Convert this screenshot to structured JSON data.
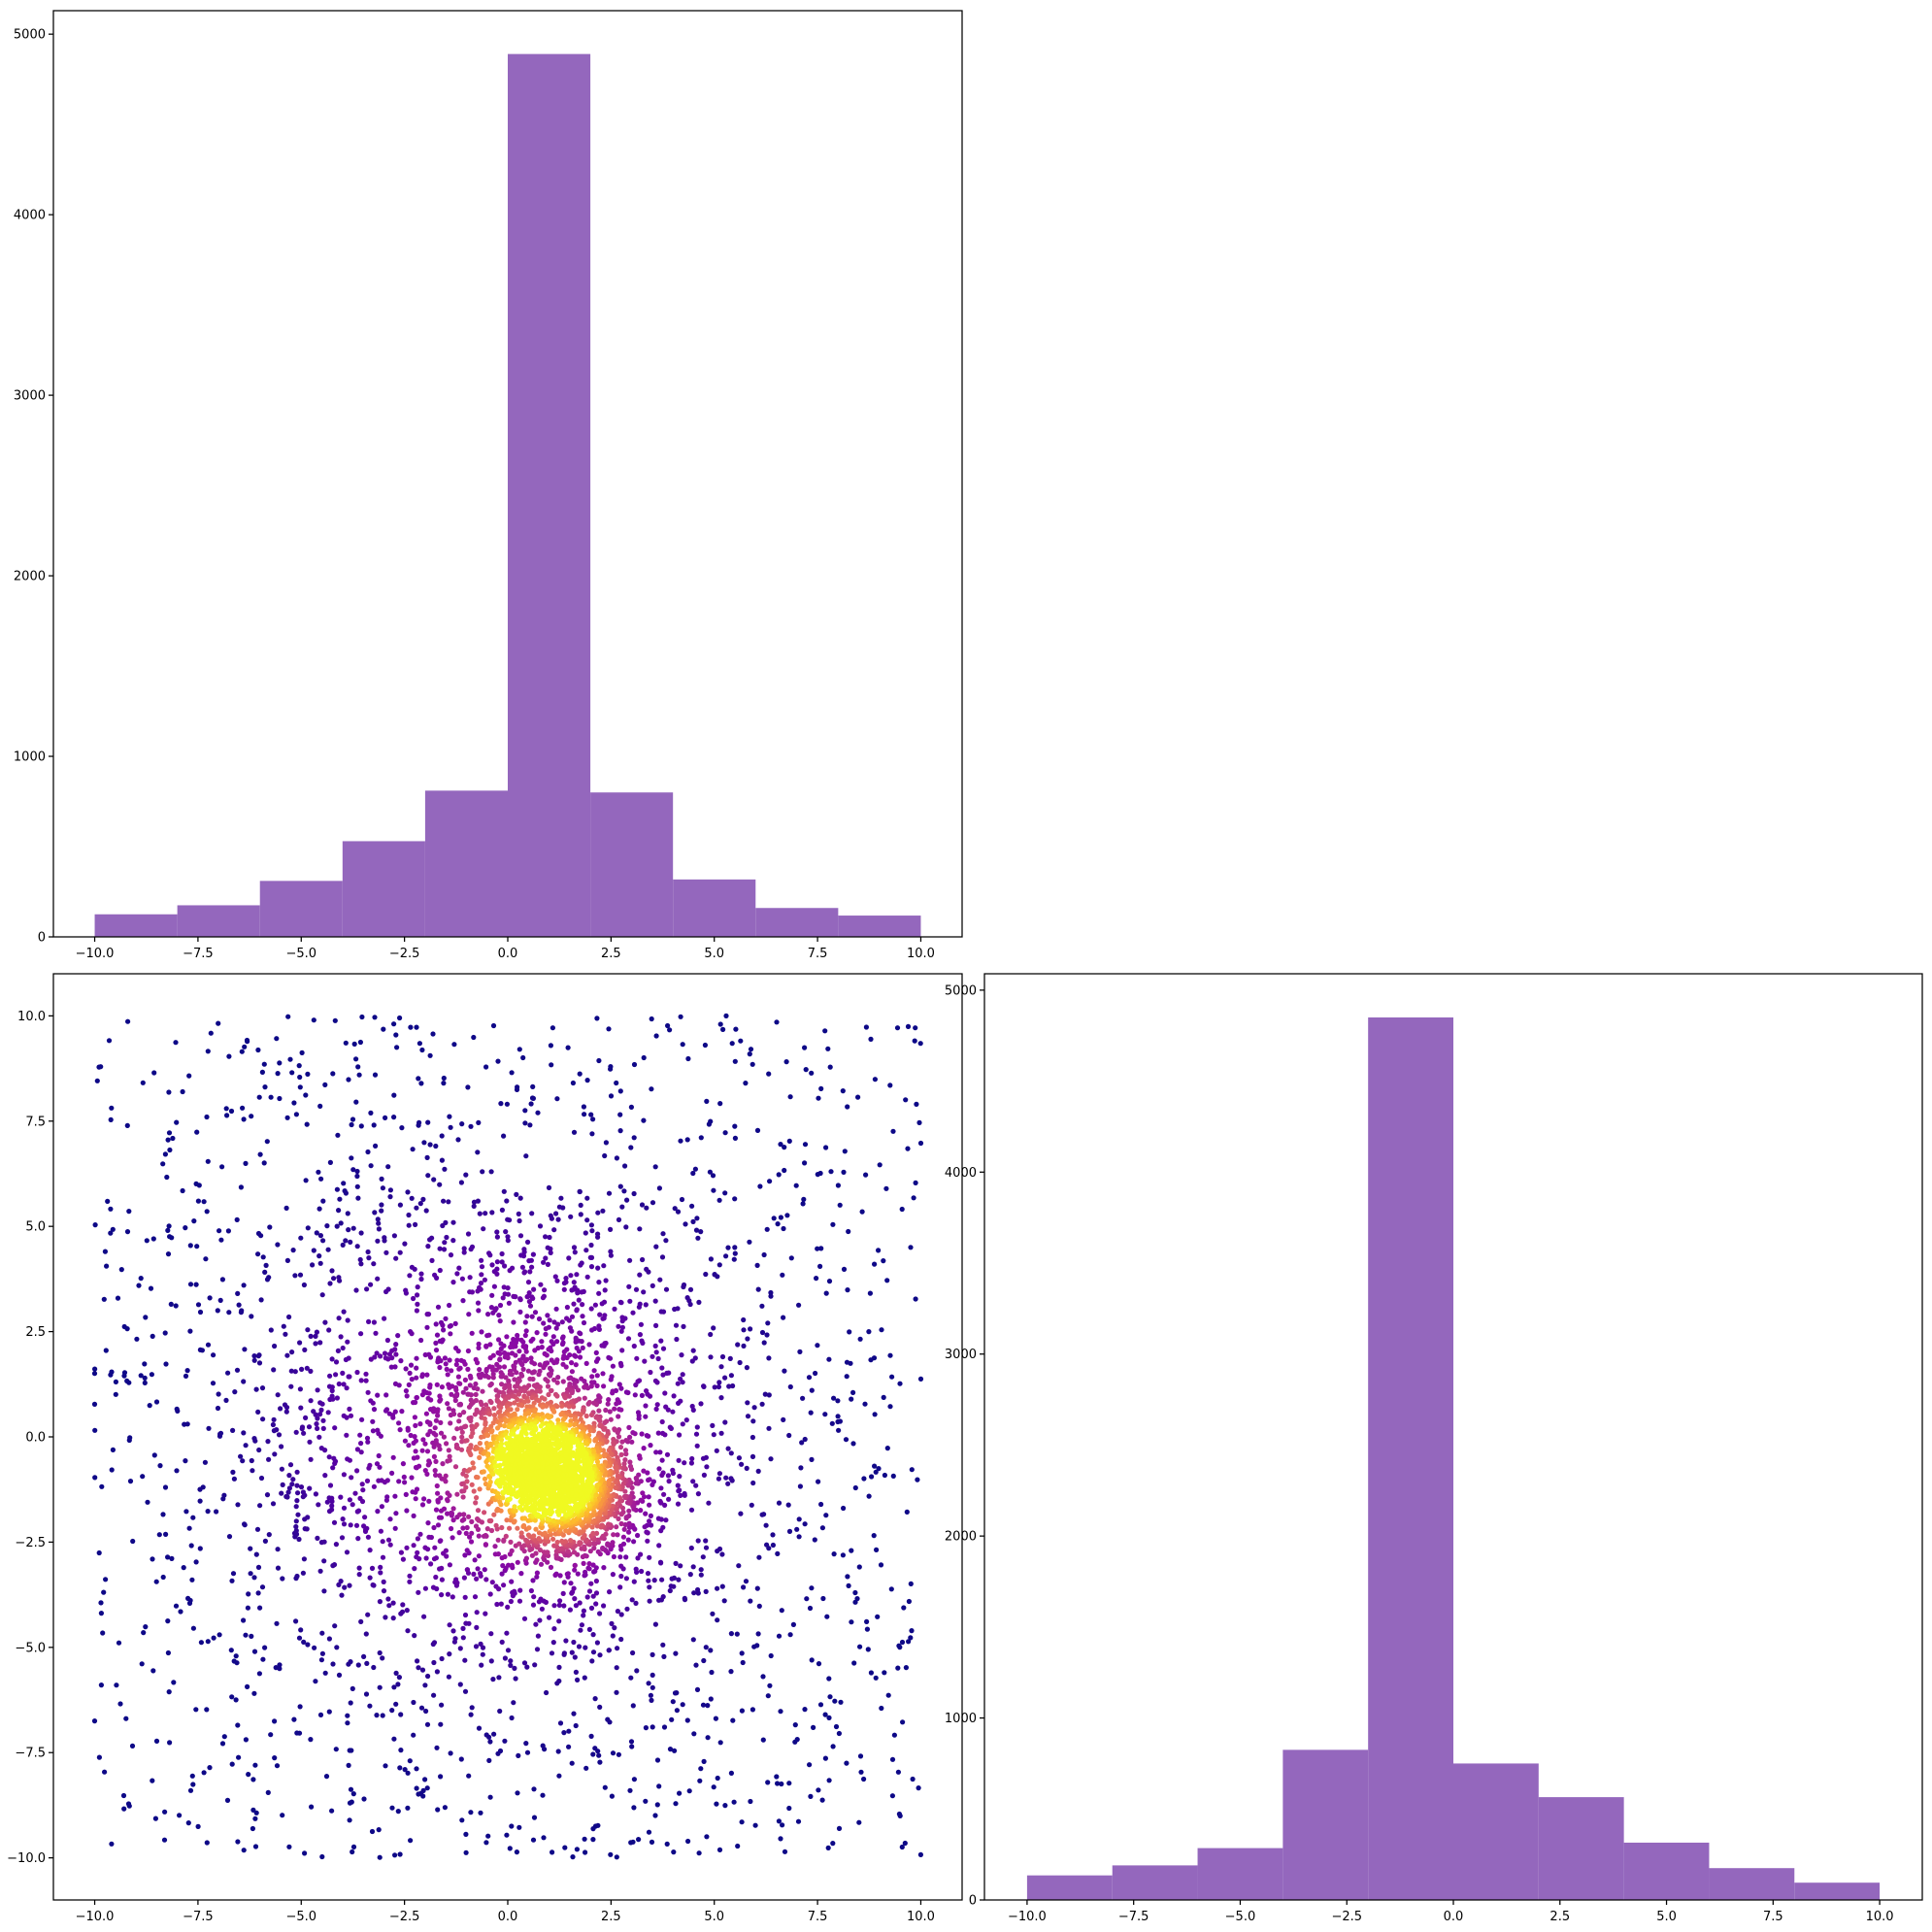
{
  "chart_data": [
    {
      "id": "top_histogram",
      "type": "bar",
      "description_free": true,
      "bin_edges": [
        -10,
        -8,
        -6,
        -4,
        -2,
        0,
        2,
        4,
        6,
        8,
        10
      ],
      "values": [
        125,
        175,
        310,
        530,
        810,
        4890,
        800,
        318,
        160,
        118
      ],
      "color": "#9467bd",
      "xlim": [
        -11,
        11
      ],
      "ylim": [
        0,
        5130
      ],
      "xticks": [
        -10.0,
        -7.5,
        -5.0,
        -2.5,
        0.0,
        2.5,
        5.0,
        7.5,
        10.0
      ],
      "xtick_labels": [
        "−10.0",
        "−7.5",
        "−5.0",
        "−2.5",
        "0.0",
        "2.5",
        "5.0",
        "7.5",
        "10.0"
      ],
      "yticks": [
        0,
        1000,
        2000,
        3000,
        4000,
        5000
      ],
      "ytick_labels": [
        "0",
        "1000",
        "2000",
        "3000",
        "4000",
        "5000"
      ],
      "title": "",
      "xlabel": "",
      "ylabel": ""
    },
    {
      "id": "scatter_density",
      "type": "scatter",
      "colormap": "plasma",
      "color_encodes": "point density",
      "x_range": [
        -10,
        10
      ],
      "y_range": [
        -10,
        10
      ],
      "dense_center": [
        0.6,
        -0.7
      ],
      "secondary_cluster_center": [
        1.6,
        -1.2
      ],
      "xlim": [
        -11,
        11
      ],
      "ylim": [
        -11,
        11
      ],
      "xticks": [
        -10.0,
        -7.5,
        -5.0,
        -2.5,
        0.0,
        2.5,
        5.0,
        7.5,
        10.0
      ],
      "xtick_labels": [
        "−10.0",
        "−7.5",
        "−5.0",
        "−2.5",
        "0.0",
        "2.5",
        "5.0",
        "7.5",
        "10.0"
      ],
      "yticks": [
        -10.0,
        -7.5,
        -5.0,
        -2.5,
        0.0,
        2.5,
        5.0,
        7.5,
        10.0
      ],
      "ytick_labels": [
        "−10.0",
        "−7.5",
        "−5.0",
        "−2.5",
        "0.0",
        "2.5",
        "5.0",
        "7.5",
        "10.0"
      ],
      "title": "",
      "xlabel": "",
      "ylabel": ""
    },
    {
      "id": "right_histogram",
      "type": "bar",
      "bin_edges": [
        -10,
        -8,
        -6,
        -4,
        -2,
        0,
        2,
        4,
        6,
        8,
        10
      ],
      "values": [
        135,
        190,
        285,
        825,
        4850,
        750,
        565,
        315,
        175,
        95
      ],
      "color": "#9467bd",
      "xlim": [
        -11,
        11
      ],
      "ylim": [
        0,
        5090
      ],
      "xticks": [
        -10.0,
        -7.5,
        -5.0,
        -2.5,
        0.0,
        2.5,
        5.0,
        7.5,
        10.0
      ],
      "xtick_labels": [
        "−10.0",
        "−7.5",
        "−5.0",
        "−2.5",
        "0.0",
        "2.5",
        "5.0",
        "7.5",
        "10.0"
      ],
      "yticks": [
        0,
        1000,
        2000,
        3000,
        4000,
        5000
      ],
      "ytick_labels": [
        "0",
        "1000",
        "2000",
        "3000",
        "4000",
        "5000"
      ],
      "title": "",
      "xlabel": "",
      "ylabel": ""
    }
  ]
}
